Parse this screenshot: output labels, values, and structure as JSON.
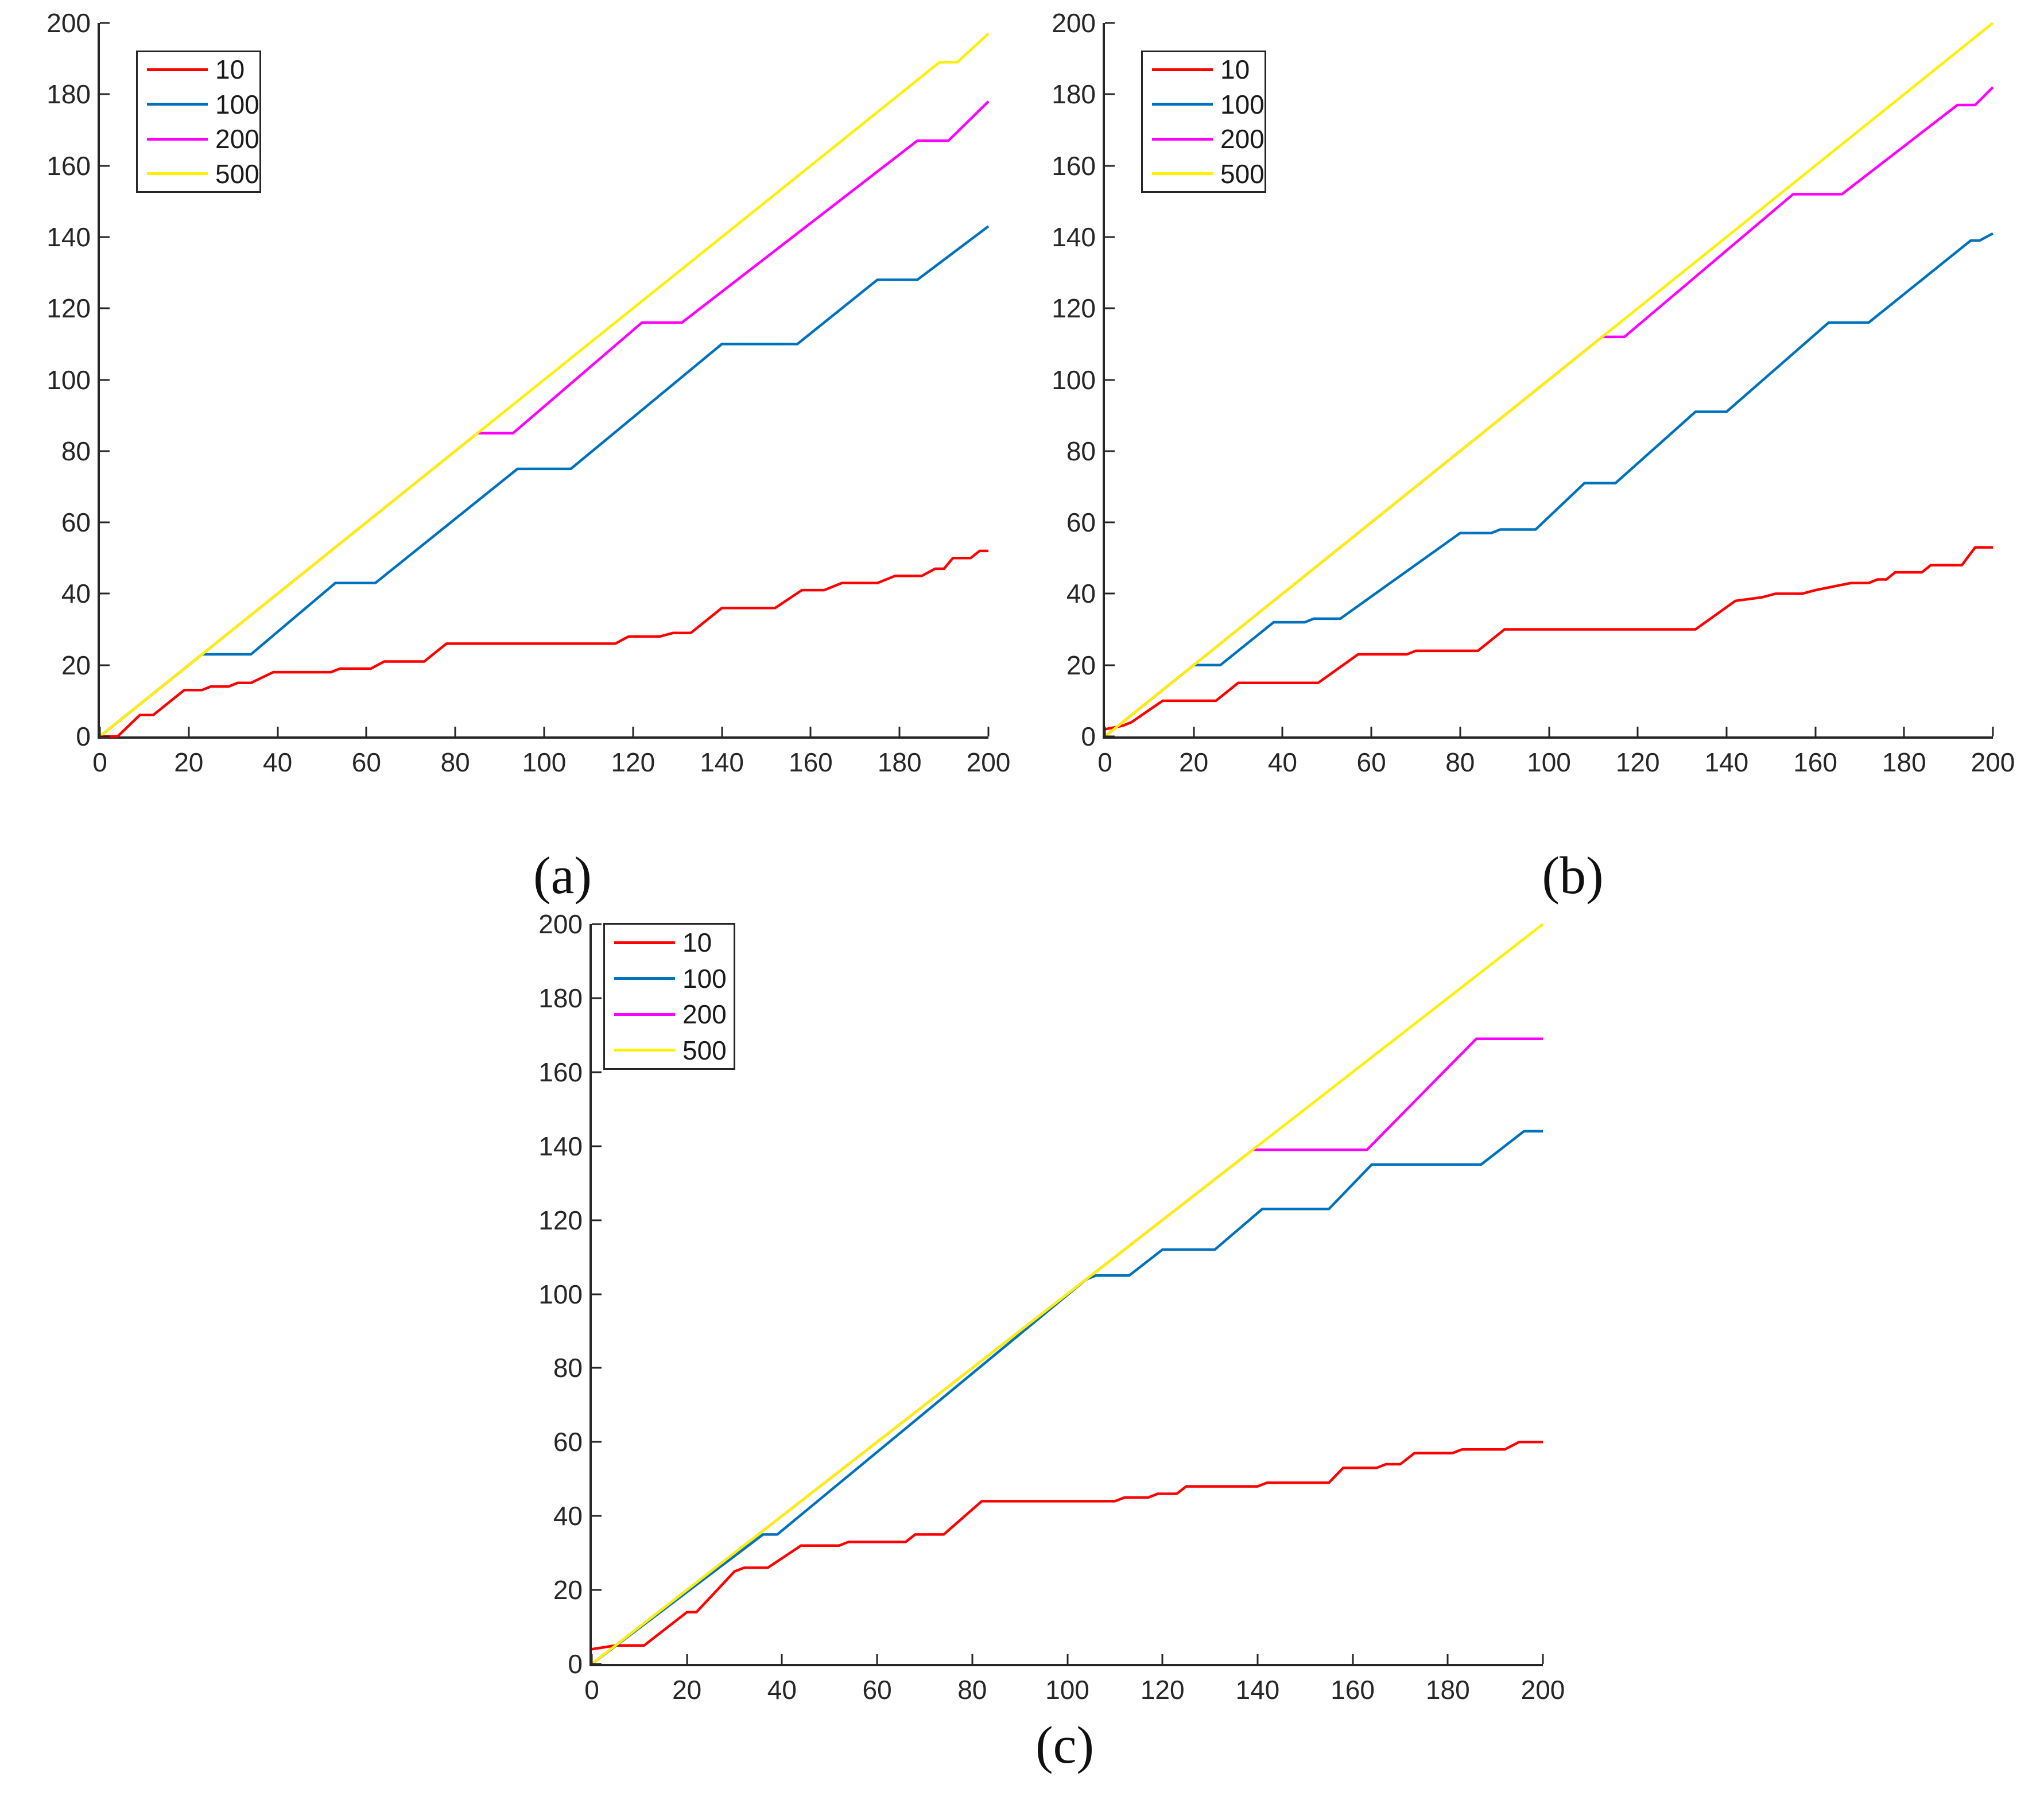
{
  "captions": {
    "a": "(a)",
    "b": "(b)",
    "c": "(c)"
  },
  "colors": {
    "series_10": "#ff0000",
    "series_100": "#0072bd",
    "series_200": "#ff00ff",
    "series_500": "#fdf000",
    "axis": "#262626",
    "tick_label": "#262626",
    "legend_border": "#262626",
    "background": "#ffffff"
  },
  "chart_data": [
    {
      "id": "a",
      "type": "line",
      "caption": "(a)",
      "title": "",
      "xlabel": "",
      "ylabel": "",
      "xlim": [
        0,
        200
      ],
      "ylim": [
        0,
        200
      ],
      "xticks": [
        0,
        20,
        40,
        60,
        80,
        100,
        120,
        140,
        160,
        180,
        200
      ],
      "yticks": [
        0,
        20,
        40,
        60,
        80,
        100,
        120,
        140,
        160,
        180,
        200
      ],
      "grid": false,
      "legend": {
        "position": "top-left",
        "entries": [
          {
            "name": "10",
            "color": "#ff0000"
          },
          {
            "name": "100",
            "color": "#0072bd"
          },
          {
            "name": "200",
            "color": "#ff00ff"
          },
          {
            "name": "500",
            "color": "#fdf000"
          }
        ]
      },
      "series": [
        {
          "name": "10",
          "color": "#ff0000",
          "points": [
            [
              0,
              0
            ],
            [
              4,
              0
            ],
            [
              9,
              6
            ],
            [
              12,
              6
            ],
            [
              19,
              13
            ],
            [
              23,
              13
            ],
            [
              25,
              14
            ],
            [
              29,
              14
            ],
            [
              31,
              15
            ],
            [
              34,
              15
            ],
            [
              39,
              18
            ],
            [
              52,
              18
            ],
            [
              54,
              19
            ],
            [
              61,
              19
            ],
            [
              64,
              21
            ],
            [
              73,
              21
            ],
            [
              78,
              26
            ],
            [
              116,
              26
            ],
            [
              119,
              28
            ],
            [
              126,
              28
            ],
            [
              129,
              29
            ],
            [
              133,
              29
            ],
            [
              140,
              36
            ],
            [
              152,
              36
            ],
            [
              158,
              41
            ],
            [
              163,
              41
            ],
            [
              167,
              43
            ],
            [
              175,
              43
            ],
            [
              179,
              45
            ],
            [
              185,
              45
            ],
            [
              188,
              47
            ],
            [
              190,
              47
            ],
            [
              192,
              50
            ],
            [
              196,
              50
            ],
            [
              198,
              52
            ],
            [
              200,
              52
            ]
          ]
        },
        {
          "name": "100",
          "color": "#0072bd",
          "points": [
            [
              0,
              0
            ],
            [
              23,
              23
            ],
            [
              34,
              23
            ],
            [
              53,
              43
            ],
            [
              62,
              43
            ],
            [
              94,
              75
            ],
            [
              106,
              75
            ],
            [
              140,
              110
            ],
            [
              157,
              110
            ],
            [
              175,
              128
            ],
            [
              184,
              128
            ],
            [
              200,
              143
            ]
          ]
        },
        {
          "name": "200",
          "color": "#ff00ff",
          "points": [
            [
              0,
              0
            ],
            [
              85,
              85
            ],
            [
              93,
              85
            ],
            [
              122,
              116
            ],
            [
              131,
              116
            ],
            [
              184,
              167
            ],
            [
              191,
              167
            ],
            [
              200,
              178
            ]
          ]
        },
        {
          "name": "500",
          "color": "#fdf000",
          "points": [
            [
              0,
              0
            ],
            [
              189,
              189
            ],
            [
              193,
              189
            ],
            [
              200,
              197
            ]
          ]
        }
      ]
    },
    {
      "id": "b",
      "type": "line",
      "caption": "(b)",
      "title": "",
      "xlabel": "",
      "ylabel": "",
      "xlim": [
        0,
        200
      ],
      "ylim": [
        0,
        200
      ],
      "xticks": [
        0,
        20,
        40,
        60,
        80,
        100,
        120,
        140,
        160,
        180,
        200
      ],
      "yticks": [
        0,
        20,
        40,
        60,
        80,
        100,
        120,
        140,
        160,
        180,
        200
      ],
      "grid": false,
      "legend": {
        "position": "top-left",
        "entries": [
          {
            "name": "10",
            "color": "#ff0000"
          },
          {
            "name": "100",
            "color": "#0072bd"
          },
          {
            "name": "200",
            "color": "#ff00ff"
          },
          {
            "name": "500",
            "color": "#fdf000"
          }
        ]
      },
      "series": [
        {
          "name": "10",
          "color": "#ff0000",
          "points": [
            [
              0,
              2
            ],
            [
              4,
              3
            ],
            [
              6,
              4
            ],
            [
              13,
              10
            ],
            [
              25,
              10
            ],
            [
              30,
              15
            ],
            [
              48,
              15
            ],
            [
              57,
              23
            ],
            [
              68,
              23
            ],
            [
              70,
              24
            ],
            [
              84,
              24
            ],
            [
              90,
              30
            ],
            [
              133,
              30
            ],
            [
              142,
              38
            ],
            [
              148,
              39
            ],
            [
              151,
              40
            ],
            [
              157,
              40
            ],
            [
              160,
              41
            ],
            [
              164,
              42
            ],
            [
              168,
              43
            ],
            [
              172,
              43
            ],
            [
              174,
              44
            ],
            [
              176,
              44
            ],
            [
              178,
              46
            ],
            [
              184,
              46
            ],
            [
              186,
              48
            ],
            [
              193,
              48
            ],
            [
              196,
              53
            ],
            [
              200,
              53
            ]
          ]
        },
        {
          "name": "100",
          "color": "#0072bd",
          "points": [
            [
              0,
              0
            ],
            [
              20,
              20
            ],
            [
              26,
              20
            ],
            [
              38,
              32
            ],
            [
              45,
              32
            ],
            [
              47,
              33
            ],
            [
              53,
              33
            ],
            [
              80,
              57
            ],
            [
              87,
              57
            ],
            [
              89,
              58
            ],
            [
              97,
              58
            ],
            [
              108,
              71
            ],
            [
              115,
              71
            ],
            [
              133,
              91
            ],
            [
              140,
              91
            ],
            [
              163,
              116
            ],
            [
              172,
              116
            ],
            [
              195,
              139
            ],
            [
              197,
              139
            ],
            [
              200,
              141
            ]
          ]
        },
        {
          "name": "200",
          "color": "#ff00ff",
          "points": [
            [
              0,
              0
            ],
            [
              112,
              112
            ],
            [
              117,
              112
            ],
            [
              155,
              152
            ],
            [
              166,
              152
            ],
            [
              192,
              177
            ],
            [
              196,
              177
            ],
            [
              200,
              182
            ]
          ]
        },
        {
          "name": "500",
          "color": "#fdf000",
          "points": [
            [
              0,
              0
            ],
            [
              200,
              200
            ]
          ]
        }
      ]
    },
    {
      "id": "c",
      "type": "line",
      "caption": "(c)",
      "title": "",
      "xlabel": "",
      "ylabel": "",
      "xlim": [
        0,
        200
      ],
      "ylim": [
        0,
        200
      ],
      "xticks": [
        0,
        20,
        40,
        60,
        80,
        100,
        120,
        140,
        160,
        180,
        200
      ],
      "yticks": [
        0,
        20,
        40,
        60,
        80,
        100,
        120,
        140,
        160,
        180,
        200
      ],
      "grid": false,
      "legend": {
        "position": "top-left",
        "entries": [
          {
            "name": "10",
            "color": "#ff0000"
          },
          {
            "name": "100",
            "color": "#0072bd"
          },
          {
            "name": "200",
            "color": "#ff00ff"
          },
          {
            "name": "500",
            "color": "#fdf000"
          }
        ]
      },
      "series": [
        {
          "name": "10",
          "color": "#ff0000",
          "points": [
            [
              0,
              4
            ],
            [
              5,
              5
            ],
            [
              11,
              5
            ],
            [
              20,
              14
            ],
            [
              22,
              14
            ],
            [
              30,
              25
            ],
            [
              32,
              26
            ],
            [
              37,
              26
            ],
            [
              44,
              32
            ],
            [
              52,
              32
            ],
            [
              54,
              33
            ],
            [
              66,
              33
            ],
            [
              68,
              35
            ],
            [
              74,
              35
            ],
            [
              82,
              44
            ],
            [
              110,
              44
            ],
            [
              112,
              45
            ],
            [
              117,
              45
            ],
            [
              119,
              46
            ],
            [
              123,
              46
            ],
            [
              125,
              48
            ],
            [
              140,
              48
            ],
            [
              142,
              49
            ],
            [
              155,
              49
            ],
            [
              158,
              53
            ],
            [
              165,
              53
            ],
            [
              167,
              54
            ],
            [
              170,
              54
            ],
            [
              173,
              57
            ],
            [
              181,
              57
            ],
            [
              183,
              58
            ],
            [
              192,
              58
            ],
            [
              195,
              60
            ],
            [
              200,
              60
            ]
          ]
        },
        {
          "name": "100",
          "color": "#0072bd",
          "points": [
            [
              0,
              0
            ],
            [
              36,
              35
            ],
            [
              39,
              35
            ],
            [
              104,
              104
            ],
            [
              106,
              105
            ],
            [
              113,
              105
            ],
            [
              120,
              112
            ],
            [
              131,
              112
            ],
            [
              141,
              123
            ],
            [
              155,
              123
            ],
            [
              164,
              135
            ],
            [
              187,
              135
            ],
            [
              196,
              144
            ],
            [
              200,
              144
            ]
          ]
        },
        {
          "name": "200",
          "color": "#ff00ff",
          "points": [
            [
              0,
              0
            ],
            [
              139,
              139
            ],
            [
              163,
              139
            ],
            [
              186,
              169
            ],
            [
              200,
              169
            ]
          ]
        },
        {
          "name": "500",
          "color": "#fdf000",
          "points": [
            [
              0,
              0
            ],
            [
              200,
              200
            ]
          ]
        }
      ]
    }
  ]
}
